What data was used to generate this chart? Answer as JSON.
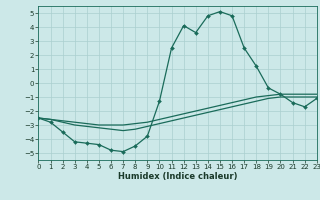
{
  "xlabel": "Humidex (Indice chaleur)",
  "ylabel": "",
  "xlim": [
    0,
    23
  ],
  "ylim": [
    -5.5,
    5.5
  ],
  "xticks": [
    0,
    1,
    2,
    3,
    4,
    5,
    6,
    7,
    8,
    9,
    10,
    11,
    12,
    13,
    14,
    15,
    16,
    17,
    18,
    19,
    20,
    21,
    22,
    23
  ],
  "yticks": [
    -5,
    -4,
    -3,
    -2,
    -1,
    0,
    1,
    2,
    3,
    4,
    5
  ],
  "bg_color": "#cce8e8",
  "line_color": "#1a6b5a",
  "grid_color": "#aacfcf",
  "line1_x": [
    0,
    1,
    2,
    3,
    4,
    5,
    6,
    7,
    8,
    9,
    10,
    11,
    12,
    13,
    14,
    15,
    16,
    17,
    18,
    19,
    20,
    21,
    22,
    23
  ],
  "line1_y": [
    -2.5,
    -2.8,
    -3.5,
    -4.2,
    -4.3,
    -4.4,
    -4.8,
    -4.9,
    -4.5,
    -3.8,
    -1.3,
    2.5,
    4.1,
    3.6,
    4.8,
    5.1,
    4.8,
    2.5,
    1.2,
    -0.35,
    -0.8,
    -1.4,
    -1.7,
    -1.1
  ],
  "line2_x": [
    0,
    1,
    2,
    3,
    4,
    5,
    6,
    7,
    8,
    9,
    10,
    11,
    12,
    13,
    14,
    15,
    16,
    17,
    18,
    19,
    20,
    21,
    22,
    23
  ],
  "line2_y": [
    -2.5,
    -2.6,
    -2.7,
    -2.8,
    -2.9,
    -3.0,
    -3.0,
    -3.0,
    -2.9,
    -2.8,
    -2.6,
    -2.4,
    -2.2,
    -2.0,
    -1.8,
    -1.6,
    -1.4,
    -1.2,
    -1.0,
    -0.9,
    -0.8,
    -0.8,
    -0.8,
    -0.8
  ],
  "line3_x": [
    0,
    1,
    2,
    3,
    4,
    5,
    6,
    7,
    8,
    9,
    10,
    11,
    12,
    13,
    14,
    15,
    16,
    17,
    18,
    19,
    20,
    21,
    22,
    23
  ],
  "line3_y": [
    -2.5,
    -2.6,
    -2.8,
    -3.0,
    -3.1,
    -3.2,
    -3.3,
    -3.4,
    -3.3,
    -3.1,
    -2.9,
    -2.7,
    -2.5,
    -2.3,
    -2.1,
    -1.9,
    -1.7,
    -1.5,
    -1.3,
    -1.1,
    -1.0,
    -1.0,
    -1.0,
    -1.0
  ]
}
